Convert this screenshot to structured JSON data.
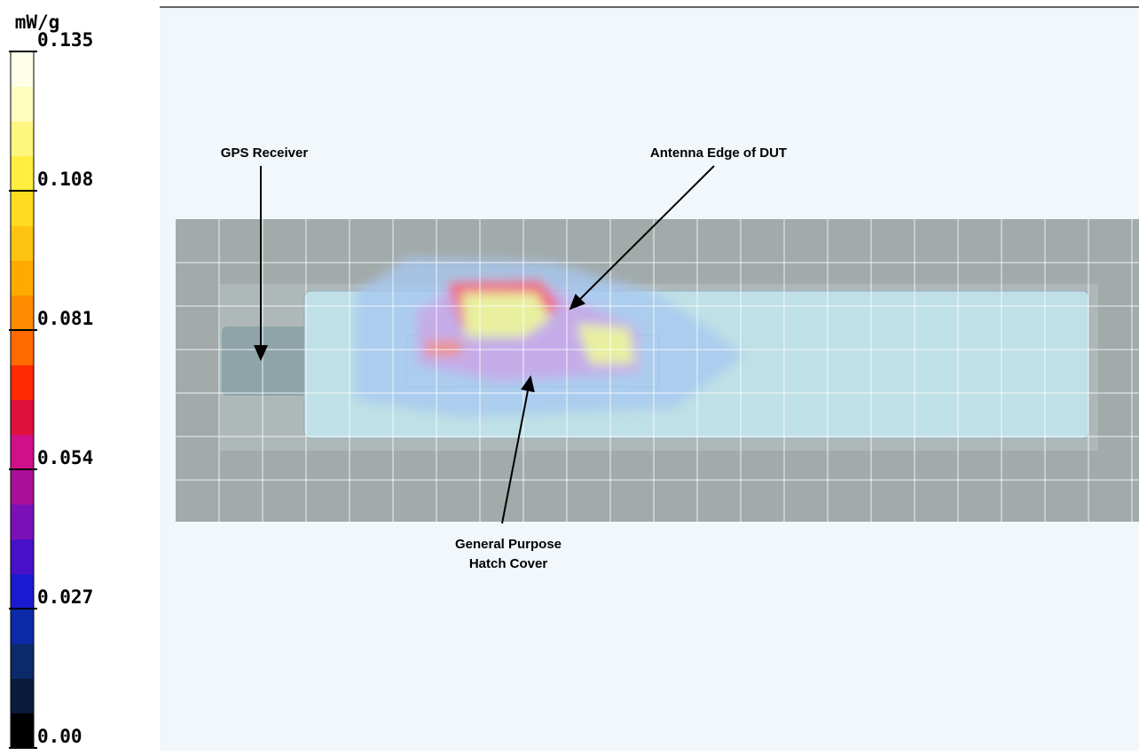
{
  "chart_data": {
    "type": "heatmap",
    "unit": "mW/g",
    "clim": [
      0,
      0.135
    ],
    "cticks": [
      {
        "value": 0,
        "label": "0.00"
      },
      0.027,
      0.054,
      0.081,
      0.108,
      0.135
    ],
    "colors": [
      "#000000",
      "#0a1a3a",
      "#0c2a6a",
      "#0a2aa8",
      "#1a1ad0",
      "#4a10c8",
      "#7a10b8",
      "#a8109a",
      "#d0108a",
      "#e0103c",
      "#ff2a00",
      "#ff6a00",
      "#ff8c00",
      "#ffaa00",
      "#ffc410",
      "#ffdc20",
      "#ffee40",
      "#fff680",
      "#fffcc0",
      "#fffee8"
    ],
    "annotations": [
      {
        "text": [
          "GPS Receiver"
        ]
      },
      {
        "text": [
          "Antenna Edge of DUT"
        ]
      },
      {
        "text": [
          "General Purpose",
          "Hatch Cover"
        ]
      }
    ]
  }
}
